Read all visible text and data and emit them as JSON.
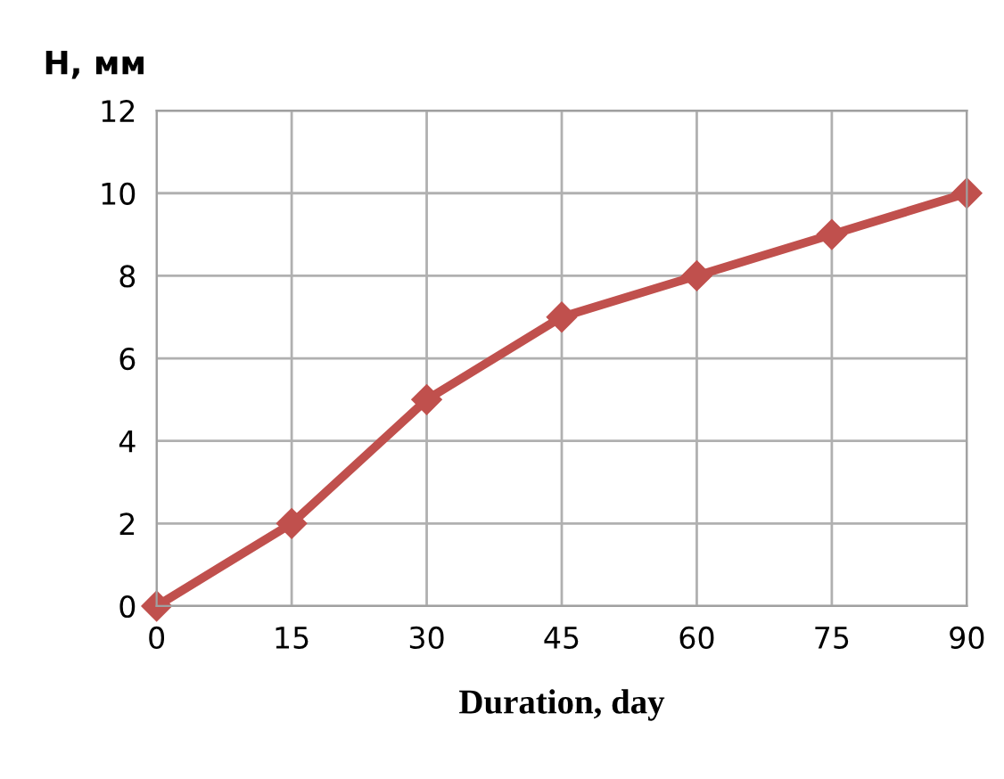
{
  "chart_data": {
    "type": "line",
    "xlabel": "Duration, day",
    "ylabel": "Н, мм",
    "x": [
      0,
      15,
      30,
      45,
      60,
      75,
      90
    ],
    "series": [
      {
        "color": "#c0504d",
        "values": [
          0,
          2,
          5,
          7,
          8,
          9,
          10
        ]
      }
    ],
    "xlim": [
      0,
      90
    ],
    "xticks": [
      0,
      15,
      30,
      45,
      60,
      75,
      90
    ],
    "ylim": [
      0,
      12
    ],
    "yticks": [
      0,
      2,
      4,
      6,
      8,
      10,
      12
    ],
    "grid": true,
    "marker": "diamond",
    "line_style": "solid",
    "legend": false
  }
}
